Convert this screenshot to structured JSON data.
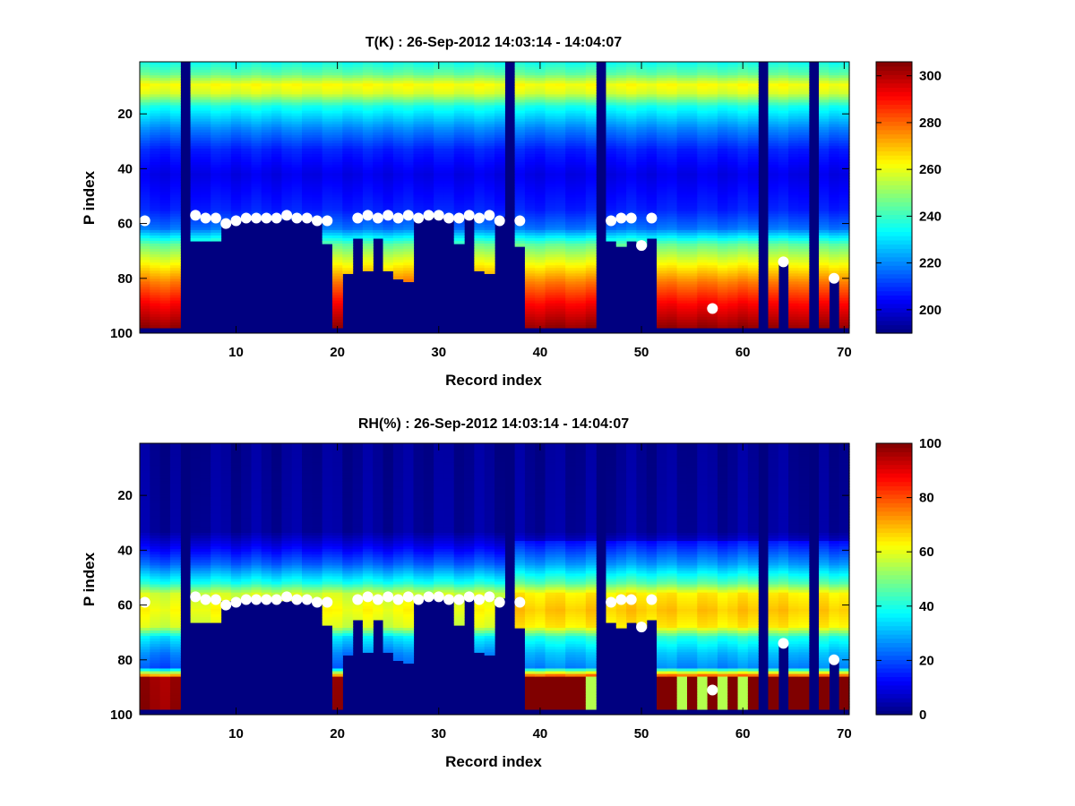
{
  "chart_data": [
    {
      "type": "heatmap",
      "title": "T(K) : 26-Sep-2012 14:03:14 - 14:04:07",
      "xlabel": "Record index",
      "ylabel": "P index",
      "xlim": [
        0.5,
        70.5
      ],
      "ylim": [
        100,
        1
      ],
      "y_reversed": true,
      "xticks": [
        10,
        20,
        30,
        40,
        50,
        60,
        70
      ],
      "yticks": [
        20,
        40,
        60,
        80,
        100
      ],
      "colormap": "jet",
      "colorbar": {
        "range": [
          190,
          306
        ],
        "ticks": [
          200,
          220,
          240,
          260,
          280,
          300
        ]
      },
      "values_description": "Temperature (K) on Record index (1-70) x P index (1-100); near top ~230-260 K, minimum ~200 K around P index 30-55, warming to ~300 K near P index 95; masked (invalid) cells drawn at colormap minimum",
      "profile_gaps_records": [
        5,
        37,
        46,
        62,
        67
      ],
      "bottom_index": [
        98,
        98,
        98,
        98,
        0,
        66,
        66,
        66,
        58,
        58,
        58,
        58,
        58,
        58,
        58,
        58,
        58,
        58,
        67,
        98,
        78,
        65,
        77,
        65,
        77,
        80,
        81,
        57,
        57,
        57,
        57,
        67,
        57,
        77,
        78,
        57,
        0,
        68,
        98,
        98,
        98,
        98,
        98,
        98,
        98,
        0,
        66,
        68,
        66,
        68,
        65,
        98,
        98,
        98,
        98,
        98,
        98,
        98,
        98,
        98,
        98,
        0,
        98,
        74,
        98,
        98,
        0,
        98,
        80,
        98
      ],
      "surface_markers": [
        {
          "x": 1,
          "y": 59
        },
        {
          "x": 6,
          "y": 57
        },
        {
          "x": 7,
          "y": 58
        },
        {
          "x": 8,
          "y": 58
        },
        {
          "x": 9,
          "y": 60
        },
        {
          "x": 10,
          "y": 59
        },
        {
          "x": 11,
          "y": 58
        },
        {
          "x": 12,
          "y": 58
        },
        {
          "x": 13,
          "y": 58
        },
        {
          "x": 14,
          "y": 58
        },
        {
          "x": 15,
          "y": 57
        },
        {
          "x": 16,
          "y": 58
        },
        {
          "x": 17,
          "y": 58
        },
        {
          "x": 18,
          "y": 59
        },
        {
          "x": 19,
          "y": 59
        },
        {
          "x": 22,
          "y": 58
        },
        {
          "x": 23,
          "y": 57
        },
        {
          "x": 24,
          "y": 58
        },
        {
          "x": 25,
          "y": 57
        },
        {
          "x": 26,
          "y": 58
        },
        {
          "x": 27,
          "y": 57
        },
        {
          "x": 28,
          "y": 58
        },
        {
          "x": 29,
          "y": 57
        },
        {
          "x": 30,
          "y": 57
        },
        {
          "x": 31,
          "y": 58
        },
        {
          "x": 32,
          "y": 58
        },
        {
          "x": 33,
          "y": 57
        },
        {
          "x": 34,
          "y": 58
        },
        {
          "x": 35,
          "y": 57
        },
        {
          "x": 36,
          "y": 59
        },
        {
          "x": 38,
          "y": 59
        },
        {
          "x": 47,
          "y": 59
        },
        {
          "x": 48,
          "y": 58
        },
        {
          "x": 49,
          "y": 58
        },
        {
          "x": 50,
          "y": 68
        },
        {
          "x": 51,
          "y": 58
        },
        {
          "x": 57,
          "y": 91
        },
        {
          "x": 64,
          "y": 74
        },
        {
          "x": 69,
          "y": 80
        }
      ]
    },
    {
      "type": "heatmap",
      "title": "RH(%) : 26-Sep-2012 14:03:14 - 14:04:07",
      "xlabel": "Record index",
      "ylabel": "P index",
      "xlim": [
        0.5,
        70.5
      ],
      "ylim": [
        100,
        1
      ],
      "y_reversed": true,
      "xticks": [
        10,
        20,
        30,
        40,
        50,
        60,
        70
      ],
      "yticks": [
        20,
        40,
        60,
        80,
        100
      ],
      "colormap": "jet",
      "colorbar": {
        "range": [
          0,
          100
        ],
        "ticks": [
          0,
          20,
          40,
          60,
          80,
          100
        ]
      },
      "values_description": "Relative humidity (%) on Record index x P index; ~0-10% above P index 40, rising to ~60-70% by P index 55-70, ~100% near P index 87-97; masked cells drawn at colormap minimum",
      "profile_gaps_records": [
        5,
        37,
        46,
        62,
        67
      ],
      "surface_markers_same_as_first": true
    }
  ]
}
